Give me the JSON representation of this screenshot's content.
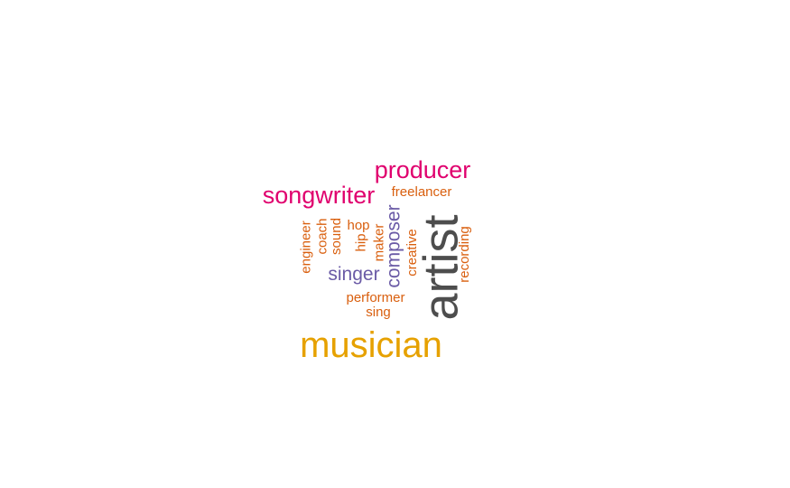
{
  "colors": {
    "grey": "#4d4d4d",
    "gold": "#e6a100",
    "magenta": "#e0006e",
    "purple": "#6a5aa6",
    "orange": "#d95f0e"
  },
  "words": [
    {
      "text": "artist",
      "color": "grey",
      "vertical": true
    },
    {
      "text": "musician",
      "color": "gold",
      "vertical": false
    },
    {
      "text": "producer",
      "color": "magenta",
      "vertical": false
    },
    {
      "text": "songwriter",
      "color": "magenta",
      "vertical": false
    },
    {
      "text": "singer",
      "color": "purple",
      "vertical": false
    },
    {
      "text": "composer",
      "color": "purple",
      "vertical": true
    },
    {
      "text": "freelancer",
      "color": "orange",
      "vertical": false
    },
    {
      "text": "performer",
      "color": "orange",
      "vertical": false
    },
    {
      "text": "sing",
      "color": "orange",
      "vertical": false
    },
    {
      "text": "hop",
      "color": "orange",
      "vertical": false
    },
    {
      "text": "hip",
      "color": "orange",
      "vertical": true
    },
    {
      "text": "maker",
      "color": "orange",
      "vertical": true
    },
    {
      "text": "creative",
      "color": "orange",
      "vertical": true
    },
    {
      "text": "recording",
      "color": "orange",
      "vertical": true
    },
    {
      "text": "engineer",
      "color": "orange",
      "vertical": true
    },
    {
      "text": "coach",
      "color": "orange",
      "vertical": true
    },
    {
      "text": "sound",
      "color": "orange",
      "vertical": true
    }
  ]
}
